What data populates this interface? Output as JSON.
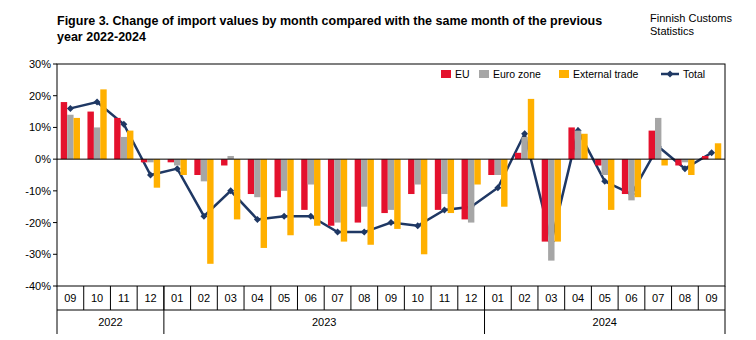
{
  "chart_data": {
    "type": "bar",
    "title": "Figure 3. Change of import values by month compared with the same month of the previous year 2022-2024",
    "annotations": [
      "Finnish Customs Statistics"
    ],
    "categories": [
      "09",
      "10",
      "11",
      "12",
      "01",
      "02",
      "03",
      "04",
      "05",
      "06",
      "07",
      "08",
      "09",
      "10",
      "11",
      "12",
      "01",
      "02",
      "03",
      "04",
      "05",
      "06",
      "07",
      "08",
      "09"
    ],
    "x_groups": [
      {
        "label": "2022",
        "count": 4
      },
      {
        "label": "2023",
        "count": 12
      },
      {
        "label": "2024",
        "count": 9
      }
    ],
    "series": [
      {
        "name": "EU",
        "color": "#e4112d",
        "values": [
          18,
          15,
          13,
          -1,
          -1,
          -5,
          -2,
          -11,
          -12,
          -16,
          -21,
          -20,
          -17,
          -11,
          -16,
          -19,
          -5,
          2,
          -26,
          10,
          -2,
          -11,
          9,
          -2,
          1
        ]
      },
      {
        "name": "Euro zone",
        "color": "#a6a6a6",
        "values": [
          14,
          10,
          7,
          -1,
          -2,
          -7,
          1,
          -12,
          -10,
          -8,
          -20,
          -15,
          -16,
          -8,
          -11,
          -20,
          -5,
          7,
          -32,
          9,
          -5,
          -13,
          13,
          -1,
          0
        ]
      },
      {
        "name": "External trade",
        "color": "#ffb000",
        "values": [
          13,
          22,
          9,
          -9,
          -5,
          -33,
          -19,
          -28,
          -24,
          -21,
          -26,
          -27,
          -22,
          -30,
          -17,
          -8,
          -15,
          19,
          -26,
          8,
          -16,
          -12,
          -2,
          -5,
          5
        ]
      },
      {
        "name": "Total",
        "color": "#1f3864",
        "type": "line",
        "marker": "diamond",
        "values": [
          16,
          18,
          11,
          -5,
          -3,
          -18,
          -10,
          -19,
          -18,
          -18,
          -23,
          -23,
          -20,
          -21,
          -16,
          -15,
          -9,
          8,
          -26,
          9,
          -7,
          -11,
          4,
          -3,
          2
        ]
      }
    ],
    "ylim": [
      -40,
      30
    ],
    "yticks": [
      {
        "value": -40,
        "label": "-40%"
      },
      {
        "value": -30,
        "label": "-30%"
      },
      {
        "value": -20,
        "label": "-20%"
      },
      {
        "value": -10,
        "label": "-10%"
      },
      {
        "value": 0,
        "label": "0%"
      },
      {
        "value": 10,
        "label": "10%"
      },
      {
        "value": 20,
        "label": "20%"
      },
      {
        "value": 30,
        "label": "30%"
      }
    ],
    "grid": false,
    "legend": "top-right"
  }
}
